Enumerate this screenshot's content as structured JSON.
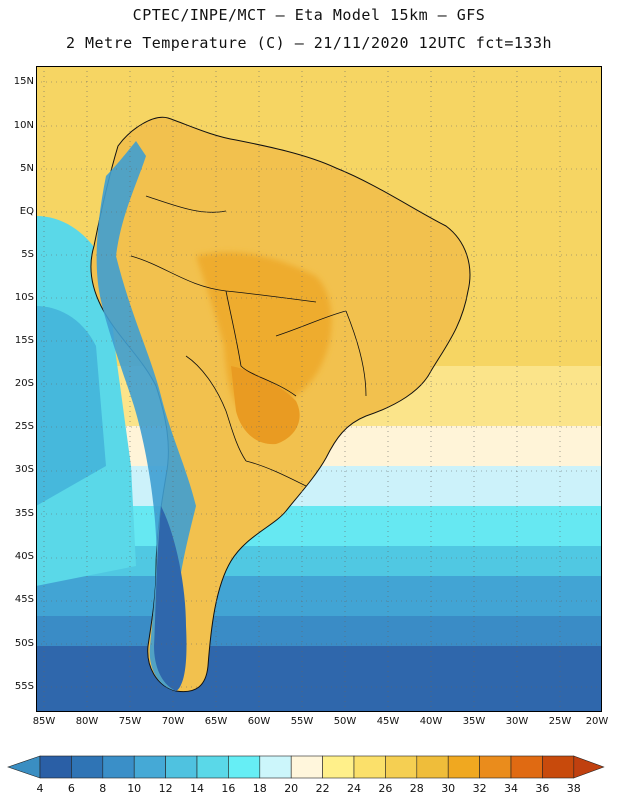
{
  "header": {
    "line1": "CPTEC/INPE/MCT –  Eta Model 15km – GFS",
    "line2": "2 Metre Temperature (C) – 21/11/2020 12UTC fct=133h"
  },
  "axes": {
    "lat_labels": [
      "15N",
      "10N",
      "5N",
      "EQ",
      "5S",
      "10S",
      "15S",
      "20S",
      "25S",
      "30S",
      "35S",
      "40S",
      "45S",
      "50S",
      "55S"
    ],
    "lon_labels": [
      "85W",
      "80W",
      "75W",
      "70W",
      "65W",
      "60W",
      "55W",
      "50W",
      "45W",
      "40W",
      "35W",
      "30W",
      "25W",
      "20W"
    ]
  },
  "colorbar": {
    "labels": [
      "4",
      "6",
      "8",
      "10",
      "12",
      "14",
      "16",
      "18",
      "20",
      "22",
      "24",
      "26",
      "28",
      "30",
      "32",
      "34",
      "36",
      "38"
    ],
    "colors": [
      "#2a5fa6",
      "#2f74b5",
      "#3a8fc8",
      "#45a9d6",
      "#4fc2e0",
      "#5ad8e8",
      "#66eef5",
      "#ccf6fb",
      "#fff6dc",
      "#fff08a",
      "#fbe06a",
      "#f5cf52",
      "#efbd3a",
      "#f0a820",
      "#ea8c1c",
      "#e06a12",
      "#c84a0c"
    ],
    "low_color": "#3a8ec2",
    "high_color": "#c0400f"
  },
  "regions": {
    "ocean_color": "#f6d060",
    "land_color": "#f0c050"
  }
}
